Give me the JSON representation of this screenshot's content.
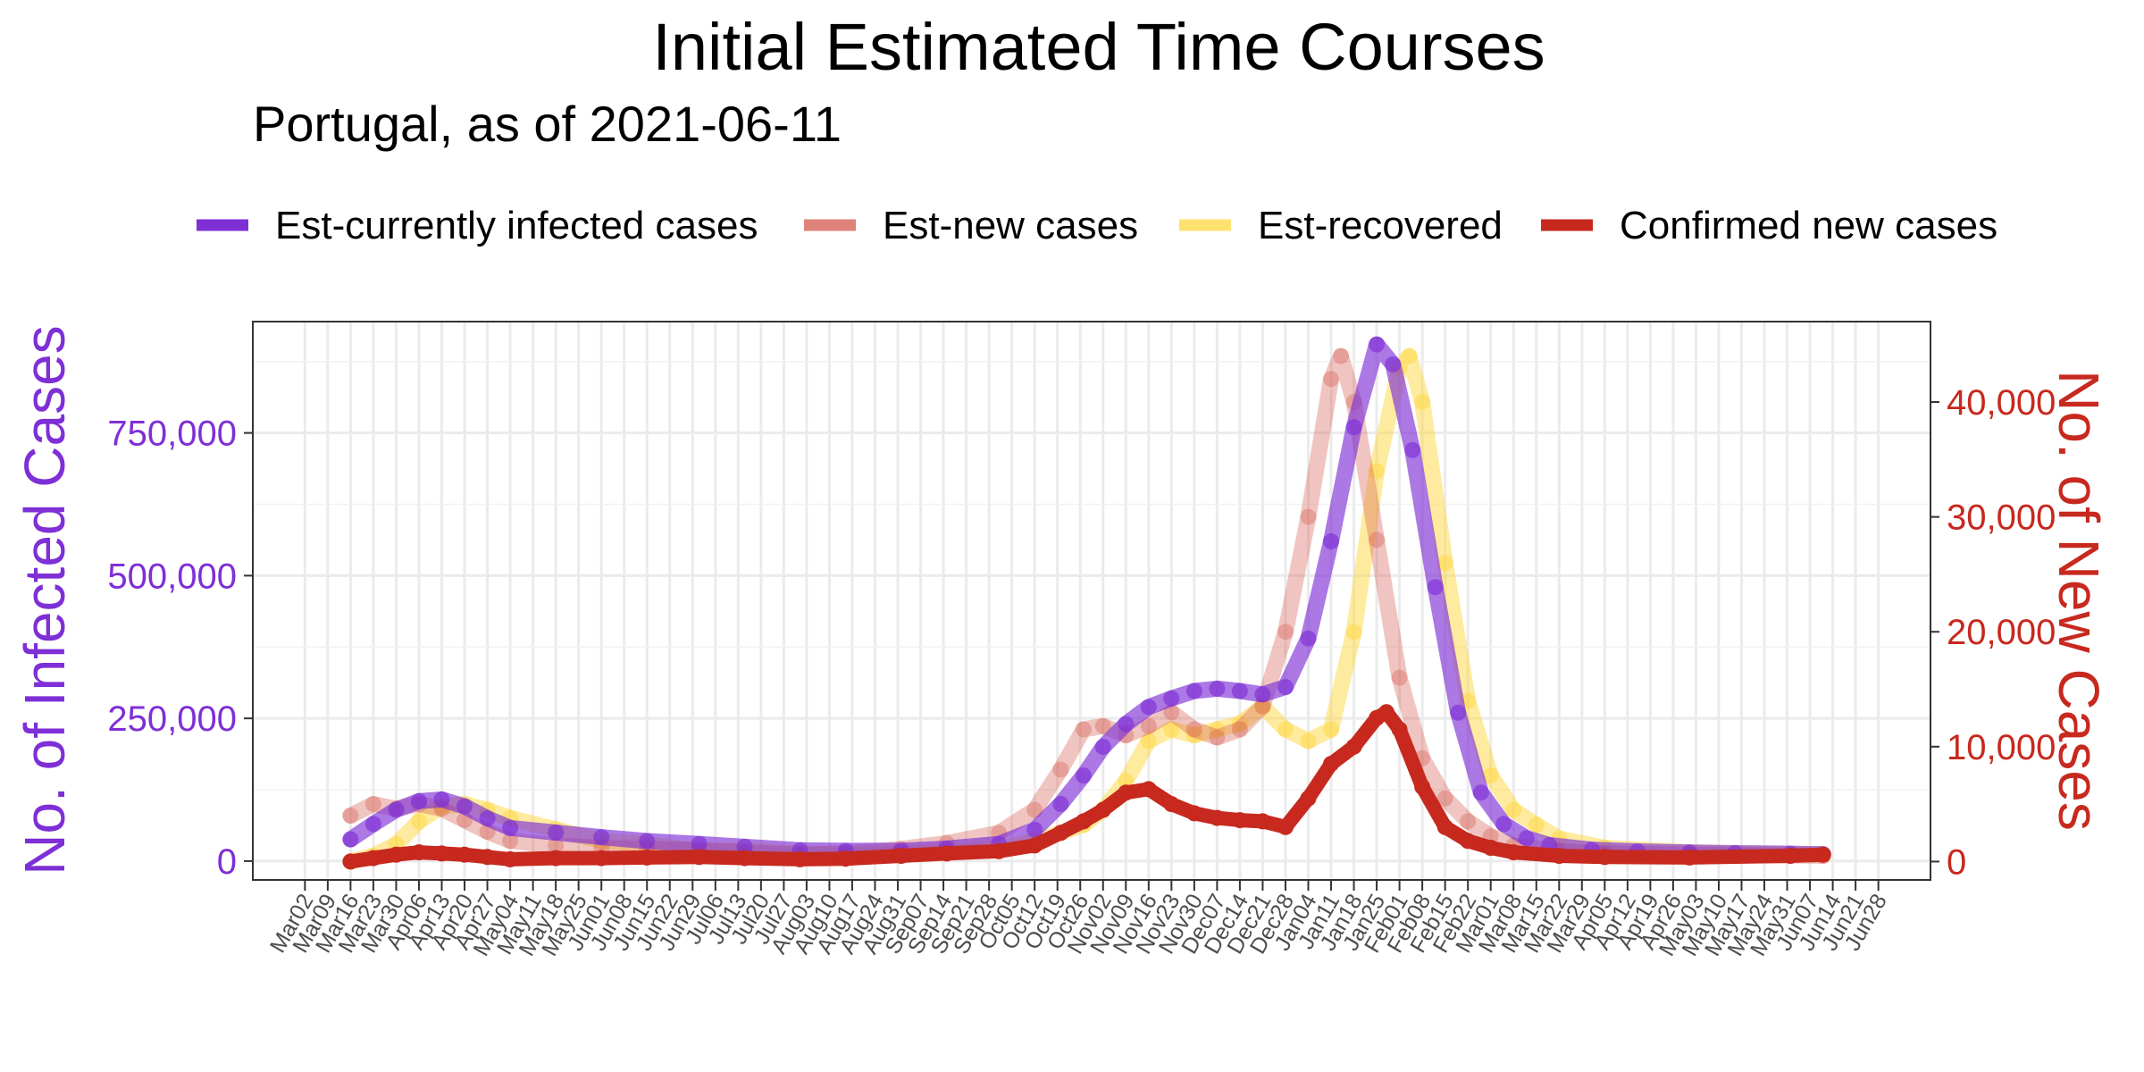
{
  "chart_data": {
    "type": "line",
    "title": "Initial Estimated Time Courses",
    "subtitle": "Portugal, as of 2021-06-11",
    "legend_position": "top",
    "grid": true,
    "x_start": "2020-03-02",
    "x_end": "2021-06-28",
    "x_tick_labels": [
      "Mar02",
      "Mar09",
      "Mar16",
      "Mar23",
      "Mar30",
      "Apr06",
      "Apr13",
      "Apr20",
      "Apr27",
      "May04",
      "May11",
      "May18",
      "May25",
      "Jun01",
      "Jun08",
      "Jun15",
      "Jun22",
      "Jun29",
      "Jul06",
      "Jul13",
      "Jul20",
      "Jul27",
      "Aug03",
      "Aug10",
      "Aug17",
      "Aug24",
      "Aug31",
      "Sep07",
      "Sep14",
      "Sep21",
      "Sep28",
      "Oct05",
      "Oct12",
      "Oct19",
      "Oct26",
      "Nov02",
      "Nov09",
      "Nov16",
      "Nov23",
      "Nov30",
      "Dec07",
      "Dec14",
      "Dec21",
      "Dec28",
      "Jan04",
      "Jan11",
      "Jan18",
      "Jan25",
      "Feb01",
      "Feb08",
      "Feb15",
      "Feb22",
      "Mar01",
      "Mar08",
      "Mar15",
      "Mar22",
      "Mar29",
      "Apr05",
      "Apr12",
      "Apr19",
      "Apr26",
      "May03",
      "May10",
      "May17",
      "May24",
      "May31",
      "Jun07",
      "Jun14",
      "Jun21",
      "Jun28"
    ],
    "y_left": {
      "label": "No. of Infected Cases",
      "ticks": [
        0,
        250000,
        500000,
        750000
      ],
      "tick_labels": [
        "0",
        "250,000",
        "500,000",
        "750,000"
      ],
      "range": [
        -33000,
        945000
      ],
      "color": "#7E2FD6"
    },
    "y_right": {
      "label": "No. of New Cases",
      "ticks": [
        0,
        10000,
        20000,
        30000,
        40000
      ],
      "tick_labels": [
        "0",
        "10,000",
        "20,000",
        "30,000",
        "40,000"
      ],
      "range": [
        -1600,
        47000
      ],
      "color": "#C7291F"
    },
    "series": [
      {
        "name": "Est-currently infected cases",
        "axis": "left",
        "color": "#7E2FD6",
        "opacity": 0.65,
        "points": [
          [
            "2020-03-16",
            38000
          ],
          [
            "2020-03-23",
            65000
          ],
          [
            "2020-03-30",
            90000
          ],
          [
            "2020-04-06",
            105000
          ],
          [
            "2020-04-13",
            108000
          ],
          [
            "2020-04-20",
            96000
          ],
          [
            "2020-04-27",
            75000
          ],
          [
            "2020-05-04",
            58000
          ],
          [
            "2020-05-18",
            50000
          ],
          [
            "2020-06-01",
            42000
          ],
          [
            "2020-06-15",
            35000
          ],
          [
            "2020-07-01",
            30000
          ],
          [
            "2020-07-15",
            25000
          ],
          [
            "2020-08-01",
            19000
          ],
          [
            "2020-08-15",
            18000
          ],
          [
            "2020-09-01",
            18000
          ],
          [
            "2020-09-15",
            22000
          ],
          [
            "2020-10-01",
            30000
          ],
          [
            "2020-10-12",
            55000
          ],
          [
            "2020-10-20",
            100000
          ],
          [
            "2020-10-27",
            150000
          ],
          [
            "2020-11-02",
            200000
          ],
          [
            "2020-11-09",
            240000
          ],
          [
            "2020-11-16",
            270000
          ],
          [
            "2020-11-23",
            285000
          ],
          [
            "2020-11-30",
            298000
          ],
          [
            "2020-12-07",
            302000
          ],
          [
            "2020-12-14",
            298000
          ],
          [
            "2020-12-21",
            292000
          ],
          [
            "2020-12-28",
            305000
          ],
          [
            "2021-01-04",
            390000
          ],
          [
            "2021-01-11",
            560000
          ],
          [
            "2021-01-18",
            760000
          ],
          [
            "2021-01-25",
            905000
          ],
          [
            "2021-01-30",
            870000
          ],
          [
            "2021-02-05",
            720000
          ],
          [
            "2021-02-12",
            480000
          ],
          [
            "2021-02-19",
            260000
          ],
          [
            "2021-02-26",
            120000
          ],
          [
            "2021-03-05",
            65000
          ],
          [
            "2021-03-12",
            40000
          ],
          [
            "2021-03-19",
            28000
          ],
          [
            "2021-04-01",
            20000
          ],
          [
            "2021-04-15",
            17000
          ],
          [
            "2021-05-01",
            15000
          ],
          [
            "2021-05-15",
            14000
          ],
          [
            "2021-06-01",
            13000
          ],
          [
            "2021-06-11",
            12000
          ]
        ]
      },
      {
        "name": "Est-new cases",
        "axis": "right",
        "color": "#D4594E",
        "opacity": 0.35,
        "points": [
          [
            "2020-03-16",
            4000
          ],
          [
            "2020-03-23",
            5000
          ],
          [
            "2020-03-30",
            4600
          ],
          [
            "2020-04-06",
            5000
          ],
          [
            "2020-04-13",
            4600
          ],
          [
            "2020-04-20",
            3600
          ],
          [
            "2020-04-27",
            2600
          ],
          [
            "2020-05-04",
            1800
          ],
          [
            "2020-05-18",
            1400
          ],
          [
            "2020-06-01",
            1200
          ],
          [
            "2020-06-15",
            1100
          ],
          [
            "2020-07-01",
            1000
          ],
          [
            "2020-07-15",
            800
          ],
          [
            "2020-08-01",
            600
          ],
          [
            "2020-08-15",
            700
          ],
          [
            "2020-09-01",
            1100
          ],
          [
            "2020-09-15",
            1600
          ],
          [
            "2020-10-01",
            2500
          ],
          [
            "2020-10-12",
            4500
          ],
          [
            "2020-10-20",
            8000
          ],
          [
            "2020-10-27",
            11500
          ],
          [
            "2020-11-02",
            11800
          ],
          [
            "2020-11-09",
            11000
          ],
          [
            "2020-11-16",
            11800
          ],
          [
            "2020-11-23",
            13000
          ],
          [
            "2020-11-30",
            11500
          ],
          [
            "2020-12-07",
            10800
          ],
          [
            "2020-12-14",
            11500
          ],
          [
            "2020-12-21",
            13500
          ],
          [
            "2020-12-28",
            20000
          ],
          [
            "2021-01-04",
            30000
          ],
          [
            "2021-01-11",
            42000
          ],
          [
            "2021-01-14",
            44000
          ],
          [
            "2021-01-18",
            40000
          ],
          [
            "2021-01-25",
            28000
          ],
          [
            "2021-02-01",
            16000
          ],
          [
            "2021-02-08",
            9000
          ],
          [
            "2021-02-15",
            5500
          ],
          [
            "2021-02-22",
            3500
          ],
          [
            "2021-03-01",
            2200
          ],
          [
            "2021-03-08",
            1400
          ],
          [
            "2021-03-22",
            900
          ],
          [
            "2021-04-05",
            700
          ],
          [
            "2021-05-01",
            600
          ],
          [
            "2021-06-11",
            500
          ]
        ]
      },
      {
        "name": "Est-recovered",
        "axis": "right",
        "color": "#FFD83F",
        "opacity": 0.5,
        "points": [
          [
            "2020-03-16",
            0
          ],
          [
            "2020-03-23",
            500
          ],
          [
            "2020-03-30",
            1500
          ],
          [
            "2020-04-06",
            3500
          ],
          [
            "2020-04-13",
            4800
          ],
          [
            "2020-04-20",
            5000
          ],
          [
            "2020-04-27",
            4500
          ],
          [
            "2020-05-04",
            3800
          ],
          [
            "2020-05-18",
            2800
          ],
          [
            "2020-06-01",
            1800
          ],
          [
            "2020-06-15",
            1500
          ],
          [
            "2020-07-01",
            900
          ],
          [
            "2020-07-15",
            1000
          ],
          [
            "2020-08-01",
            700
          ],
          [
            "2020-08-15",
            600
          ],
          [
            "2020-09-01",
            700
          ],
          [
            "2020-09-15",
            800
          ],
          [
            "2020-10-01",
            1100
          ],
          [
            "2020-10-12",
            1800
          ],
          [
            "2020-10-20",
            2500
          ],
          [
            "2020-10-27",
            3200
          ],
          [
            "2020-11-02",
            4500
          ],
          [
            "2020-11-09",
            7000
          ],
          [
            "2020-11-16",
            10500
          ],
          [
            "2020-11-23",
            11500
          ],
          [
            "2020-11-30",
            11000
          ],
          [
            "2020-12-07",
            11500
          ],
          [
            "2020-12-14",
            12000
          ],
          [
            "2020-12-21",
            13500
          ],
          [
            "2020-12-28",
            11500
          ],
          [
            "2021-01-04",
            10500
          ],
          [
            "2021-01-11",
            11500
          ],
          [
            "2021-01-18",
            20000
          ],
          [
            "2021-01-25",
            34000
          ],
          [
            "2021-02-01",
            43000
          ],
          [
            "2021-02-04",
            44000
          ],
          [
            "2021-02-08",
            40000
          ],
          [
            "2021-02-15",
            26000
          ],
          [
            "2021-02-22",
            14000
          ],
          [
            "2021-03-01",
            7500
          ],
          [
            "2021-03-08",
            4500
          ],
          [
            "2021-03-15",
            3200
          ],
          [
            "2021-03-22",
            2000
          ],
          [
            "2021-04-05",
            1200
          ],
          [
            "2021-05-01",
            800
          ],
          [
            "2021-06-11",
            600
          ]
        ]
      },
      {
        "name": "Confirmed new cases",
        "axis": "right",
        "color": "#C7291F",
        "opacity": 1,
        "points": [
          [
            "2020-03-16",
            0
          ],
          [
            "2020-03-23",
            300
          ],
          [
            "2020-03-30",
            600
          ],
          [
            "2020-04-06",
            800
          ],
          [
            "2020-04-13",
            700
          ],
          [
            "2020-04-20",
            600
          ],
          [
            "2020-04-27",
            400
          ],
          [
            "2020-05-04",
            200
          ],
          [
            "2020-05-18",
            300
          ],
          [
            "2020-06-01",
            300
          ],
          [
            "2020-06-15",
            350
          ],
          [
            "2020-07-01",
            400
          ],
          [
            "2020-07-15",
            300
          ],
          [
            "2020-08-01",
            200
          ],
          [
            "2020-08-15",
            250
          ],
          [
            "2020-09-01",
            500
          ],
          [
            "2020-09-15",
            700
          ],
          [
            "2020-10-01",
            900
          ],
          [
            "2020-10-12",
            1400
          ],
          [
            "2020-10-20",
            2500
          ],
          [
            "2020-10-27",
            3500
          ],
          [
            "2020-11-02",
            4500
          ],
          [
            "2020-11-09",
            6000
          ],
          [
            "2020-11-16",
            6300
          ],
          [
            "2020-11-23",
            5000
          ],
          [
            "2020-11-30",
            4200
          ],
          [
            "2020-12-07",
            3800
          ],
          [
            "2020-12-14",
            3600
          ],
          [
            "2020-12-21",
            3500
          ],
          [
            "2020-12-28",
            3000
          ],
          [
            "2021-01-04",
            5500
          ],
          [
            "2021-01-11",
            8500
          ],
          [
            "2021-01-18",
            10000
          ],
          [
            "2021-01-25",
            12500
          ],
          [
            "2021-01-28",
            13000
          ],
          [
            "2021-02-01",
            11500
          ],
          [
            "2021-02-08",
            6500
          ],
          [
            "2021-02-15",
            3000
          ],
          [
            "2021-02-22",
            1800
          ],
          [
            "2021-03-01",
            1200
          ],
          [
            "2021-03-08",
            800
          ],
          [
            "2021-03-22",
            500
          ],
          [
            "2021-04-05",
            400
          ],
          [
            "2021-05-01",
            350
          ],
          [
            "2021-06-01",
            500
          ],
          [
            "2021-06-11",
            600
          ]
        ]
      }
    ]
  }
}
